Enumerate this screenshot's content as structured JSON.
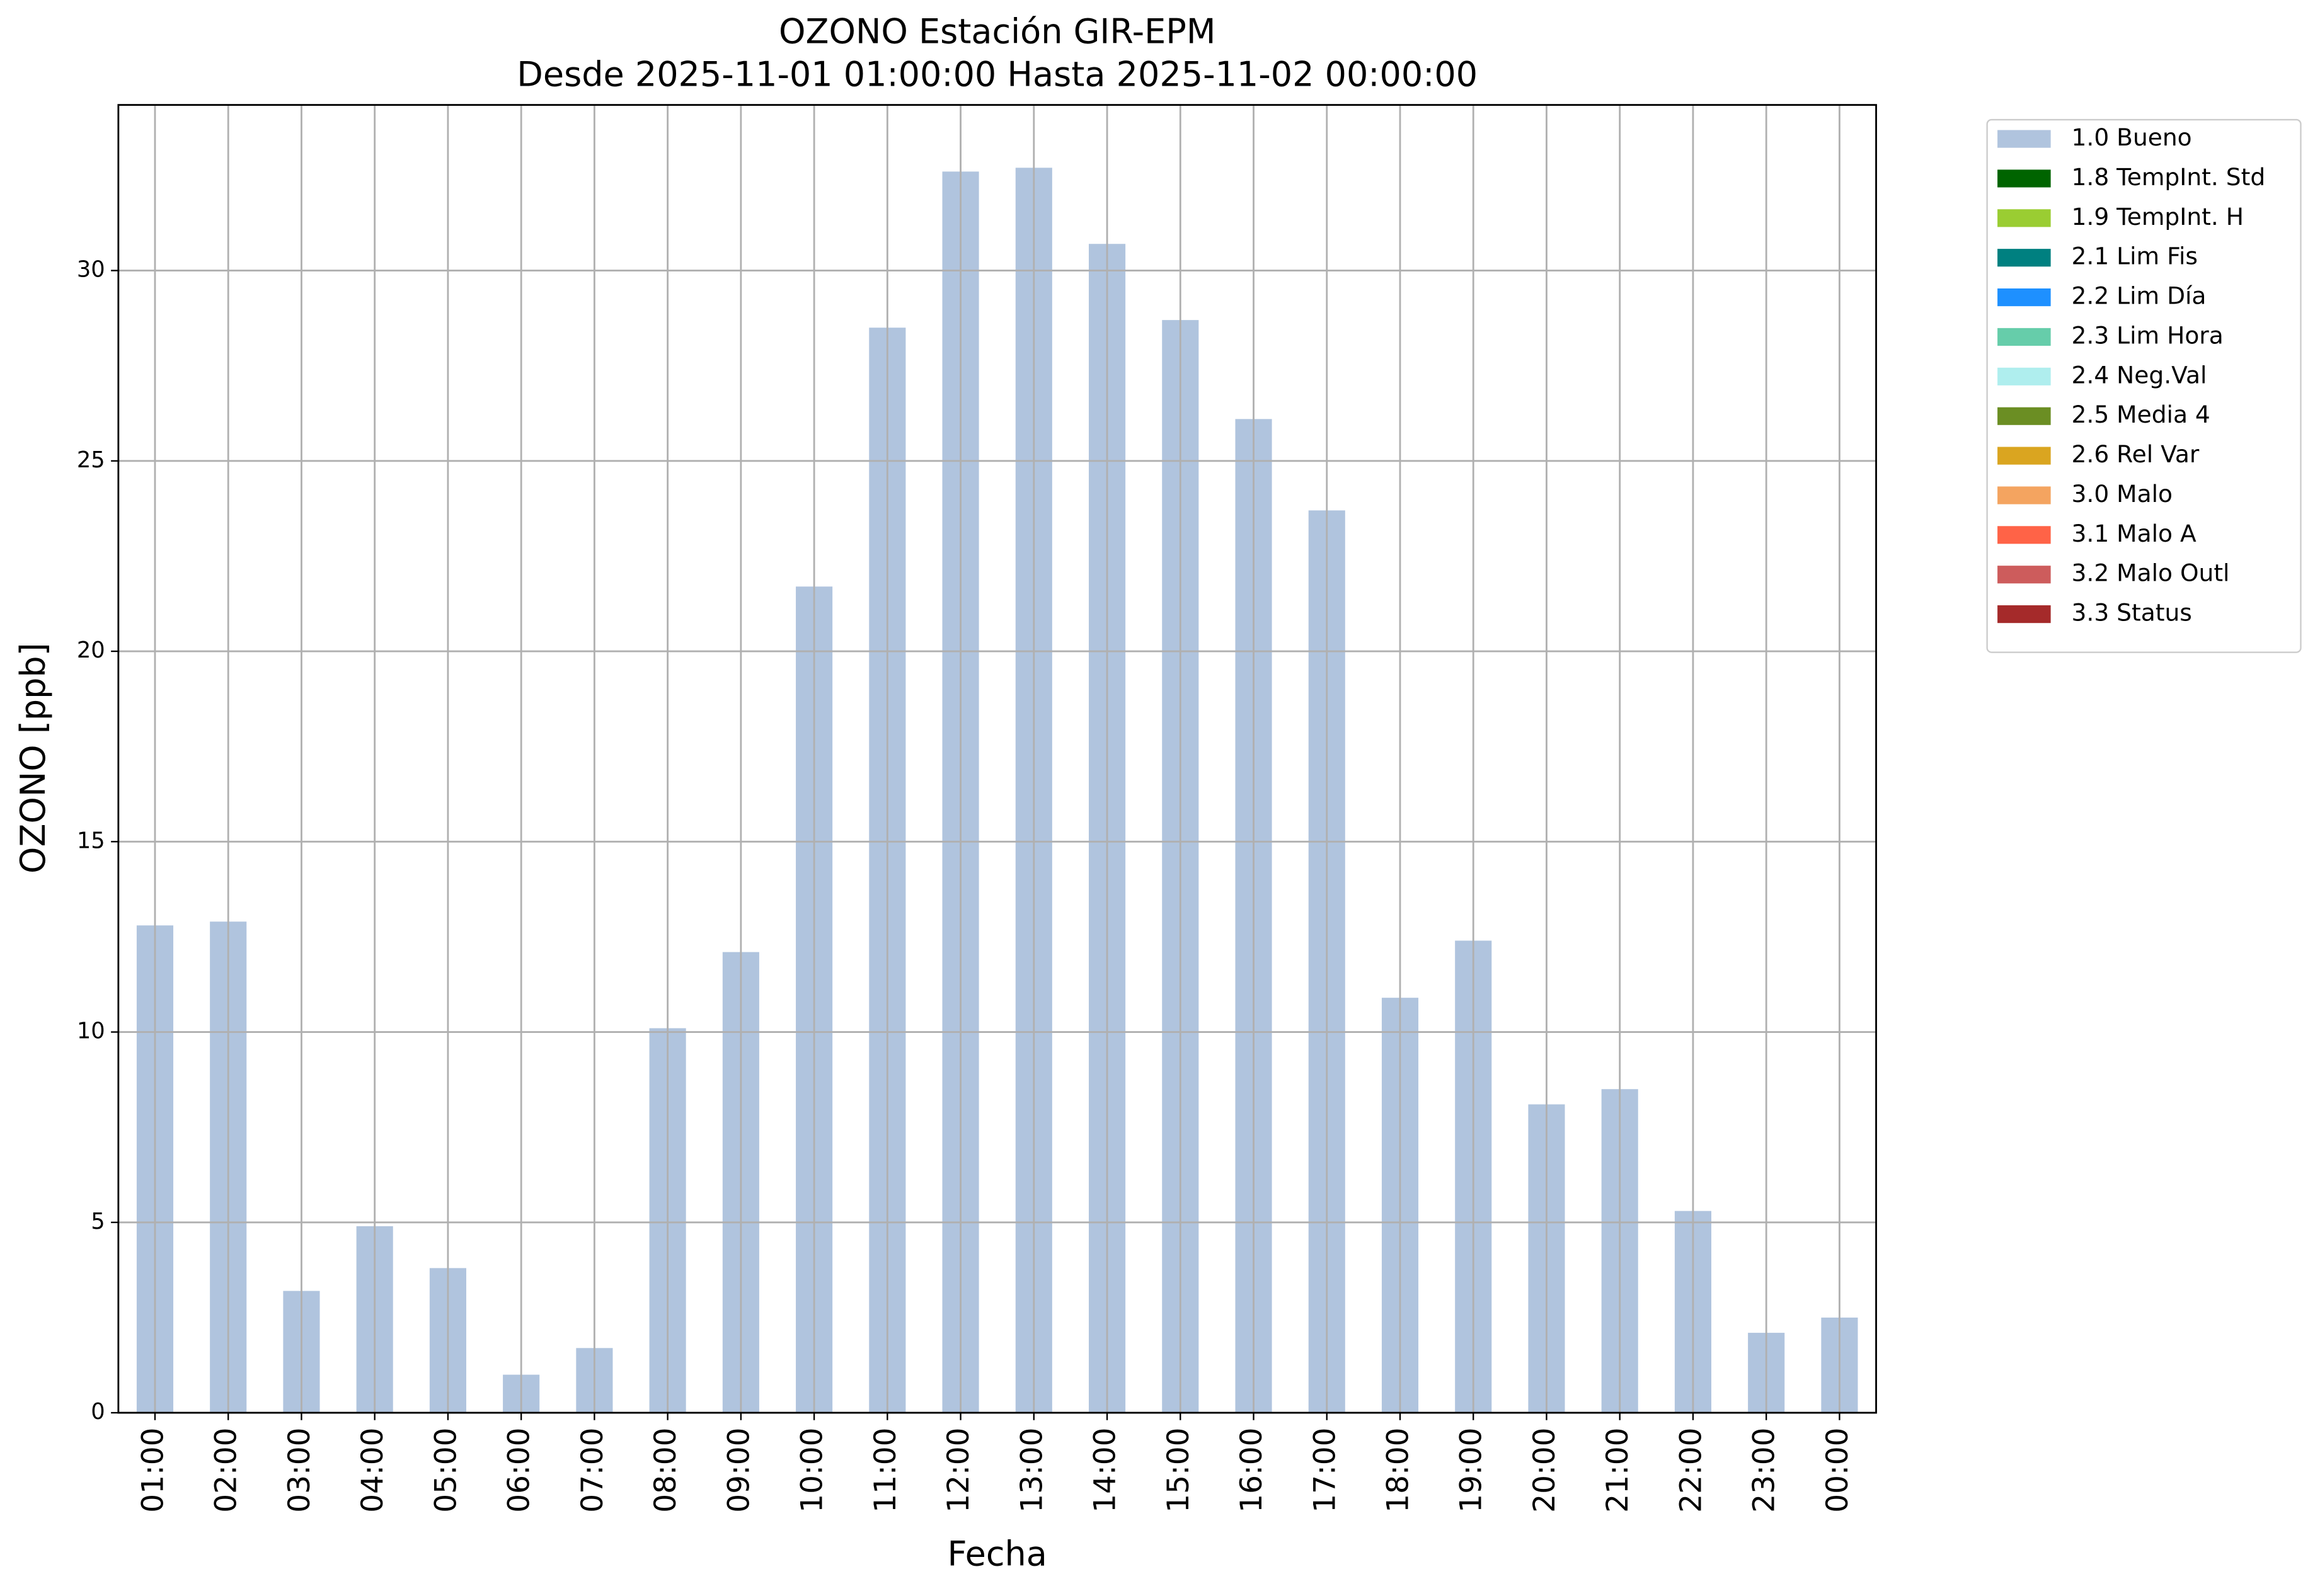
{
  "chart_data": {
    "type": "bar",
    "stacked": true,
    "title": "OZONO Estación GIR-EPM",
    "subtitle": "Desde 2025-11-01 01:00:00 Hasta 2025-11-02 00:00:00",
    "x_label": "Fecha",
    "y_label": "OZONO [ppb]",
    "categories": [
      "01:00",
      "02:00",
      "03:00",
      "04:00",
      "05:00",
      "06:00",
      "07:00",
      "08:00",
      "09:00",
      "10:00",
      "11:00",
      "12:00",
      "13:00",
      "14:00",
      "15:00",
      "16:00",
      "17:00",
      "18:00",
      "19:00",
      "20:00",
      "21:00",
      "22:00",
      "23:00",
      "00:00"
    ],
    "series": [
      {
        "name": "1.0 Bueno",
        "color": "#b0c4de",
        "values": [
          12.8,
          12.9,
          3.2,
          4.9,
          3.8,
          1.0,
          1.7,
          10.1,
          12.1,
          21.7,
          28.5,
          32.6,
          32.7,
          30.7,
          28.7,
          26.1,
          23.7,
          10.9,
          12.4,
          8.1,
          8.5,
          5.3,
          2.1,
          2.5
        ]
      },
      {
        "name": "1.8 TempInt. Std",
        "color": "#006400",
        "values": [
          0,
          0,
          0,
          0,
          0,
          0,
          0,
          0,
          0,
          0,
          0,
          0,
          0,
          0,
          0,
          0,
          0,
          0,
          0,
          0,
          0,
          0,
          0,
          0
        ]
      },
      {
        "name": "1.9 TempInt. H",
        "color": "#9acd32",
        "values": [
          0,
          0,
          0,
          0,
          0,
          0,
          0,
          0,
          0,
          0,
          0,
          0,
          0,
          0,
          0,
          0,
          0,
          0,
          0,
          0,
          0,
          0,
          0,
          0
        ]
      },
      {
        "name": "2.1 Lim Fis",
        "color": "#008080",
        "values": [
          0,
          0,
          0,
          0,
          0,
          0,
          0,
          0,
          0,
          0,
          0,
          0,
          0,
          0,
          0,
          0,
          0,
          0,
          0,
          0,
          0,
          0,
          0,
          0
        ]
      },
      {
        "name": "2.2 Lim Día",
        "color": "#1e90ff",
        "values": [
          0,
          0,
          0,
          0,
          0,
          0,
          0,
          0,
          0,
          0,
          0,
          0,
          0,
          0,
          0,
          0,
          0,
          0,
          0,
          0,
          0,
          0,
          0,
          0
        ]
      },
      {
        "name": "2.3 Lim Hora",
        "color": "#66cdaa",
        "values": [
          0,
          0,
          0,
          0,
          0,
          0,
          0,
          0,
          0,
          0,
          0,
          0,
          0,
          0,
          0,
          0,
          0,
          0,
          0,
          0,
          0,
          0,
          0,
          0
        ]
      },
      {
        "name": "2.4 Neg.Val",
        "color": "#afeeee",
        "values": [
          0,
          0,
          0,
          0,
          0,
          0,
          0,
          0,
          0,
          0,
          0,
          0,
          0,
          0,
          0,
          0,
          0,
          0,
          0,
          0,
          0,
          0,
          0,
          0
        ]
      },
      {
        "name": "2.5 Media 4",
        "color": "#6b8e23",
        "values": [
          0,
          0,
          0,
          0,
          0,
          0,
          0,
          0,
          0,
          0,
          0,
          0,
          0,
          0,
          0,
          0,
          0,
          0,
          0,
          0,
          0,
          0,
          0,
          0
        ]
      },
      {
        "name": "2.6 Rel Var",
        "color": "#daa520",
        "values": [
          0,
          0,
          0,
          0,
          0,
          0,
          0,
          0,
          0,
          0,
          0,
          0,
          0,
          0,
          0,
          0,
          0,
          0,
          0,
          0,
          0,
          0,
          0,
          0
        ]
      },
      {
        "name": "3.0 Malo",
        "color": "#f4a460",
        "values": [
          0,
          0,
          0,
          0,
          0,
          0,
          0,
          0,
          0,
          0,
          0,
          0,
          0,
          0,
          0,
          0,
          0,
          0,
          0,
          0,
          0,
          0,
          0,
          0
        ]
      },
      {
        "name": "3.1 Malo A",
        "color": "#ff6347",
        "values": [
          0,
          0,
          0,
          0,
          0,
          0,
          0,
          0,
          0,
          0,
          0,
          0,
          0,
          0,
          0,
          0,
          0,
          0,
          0,
          0,
          0,
          0,
          0,
          0
        ]
      },
      {
        "name": "3.2 Malo Outl",
        "color": "#cd5c5c",
        "values": [
          0,
          0,
          0,
          0,
          0,
          0,
          0,
          0,
          0,
          0,
          0,
          0,
          0,
          0,
          0,
          0,
          0,
          0,
          0,
          0,
          0,
          0,
          0,
          0
        ]
      },
      {
        "name": "3.3 Status",
        "color": "#a52a2a",
        "values": [
          0,
          0,
          0,
          0,
          0,
          0,
          0,
          0,
          0,
          0,
          0,
          0,
          0,
          0,
          0,
          0,
          0,
          0,
          0,
          0,
          0,
          0,
          0,
          0
        ]
      }
    ],
    "ylim": [
      0,
      34.35
    ],
    "yticks": [
      0,
      5,
      10,
      15,
      20,
      25,
      30
    ],
    "grid": true,
    "legend": "outside-upper-right"
  }
}
